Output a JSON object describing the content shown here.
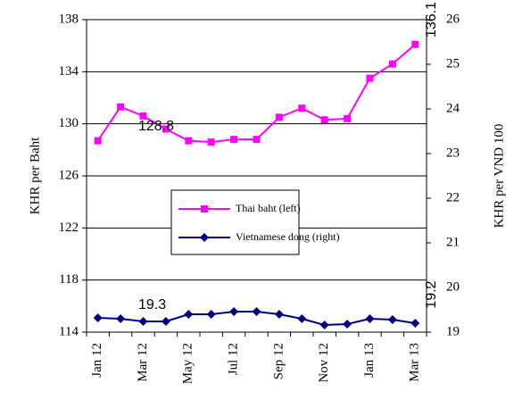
{
  "chart_data": {
    "type": "line",
    "categories": [
      "Jan 12",
      null,
      "Mar 12",
      null,
      "May 12",
      null,
      "Jul 12",
      null,
      "Sep 12",
      null,
      "Nov 12",
      null,
      "Jan 13",
      null,
      "Mar 13"
    ],
    "series": [
      {
        "name": "Thai baht (left)",
        "color": "#ff00ff",
        "marker": "square",
        "axis": "y",
        "values": [
          128.7,
          131.3,
          130.6,
          129.6,
          128.7,
          128.6,
          128.8,
          128.8,
          130.5,
          131.2,
          130.3,
          130.4,
          133.5,
          134.6,
          136.1
        ]
      },
      {
        "name": "Vietnamese dong (right)",
        "color": "#000080",
        "marker": "diamond",
        "axis": "y2",
        "values": [
          19.32,
          19.3,
          19.24,
          19.24,
          19.4,
          19.4,
          19.46,
          19.46,
          19.4,
          19.3,
          19.16,
          19.18,
          19.3,
          19.28,
          19.2
        ]
      }
    ],
    "ylabel": "KHR per Baht",
    "y2label": "KHR per VND 100",
    "ylim": [
      114,
      138
    ],
    "yticks": [
      114,
      118,
      122,
      126,
      130,
      134,
      138
    ],
    "y2lim": [
      19,
      26
    ],
    "y2ticks": [
      19,
      20,
      21,
      22,
      23,
      24,
      25,
      26
    ],
    "grid": true,
    "legend": "center",
    "annotations": [
      "128.8",
      "136.1",
      "19.3",
      "19.2"
    ]
  }
}
